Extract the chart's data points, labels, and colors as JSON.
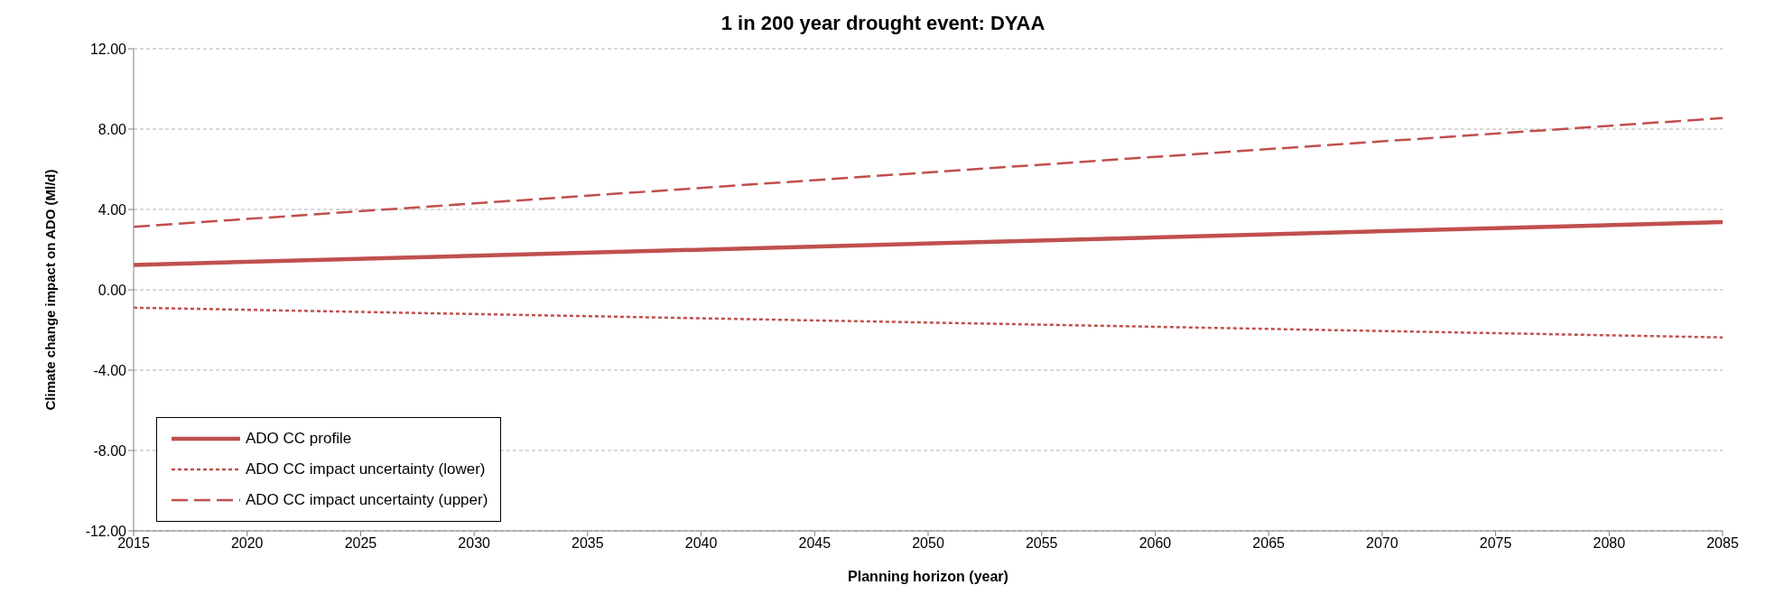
{
  "chart_data": {
    "type": "line",
    "title": "1 in 200 year drought event: DYAA",
    "xlabel": "Planning horizon (year)",
    "ylabel": "Climate change impact on ADO (Ml/d)",
    "x": [
      2015,
      2085
    ],
    "series": [
      {
        "name": "ADO CC profile",
        "color": "#c0504d",
        "values": [
          1.24,
          3.37
        ],
        "line_style": "solid"
      },
      {
        "name": "ADO CC impact uncertainty (lower)",
        "color": "#c0504d",
        "values": [
          -0.89,
          -2.37
        ],
        "line_style": "dotted"
      },
      {
        "name": "ADO CC impact uncertainty (upper)",
        "color": "#c0504d",
        "values": [
          3.14,
          8.55
        ],
        "line_style": "dashed"
      }
    ],
    "xlim": [
      2015,
      2085
    ],
    "xticks": [
      2015,
      2020,
      2025,
      2030,
      2035,
      2040,
      2045,
      2050,
      2055,
      2060,
      2065,
      2070,
      2075,
      2080,
      2085
    ],
    "ylim": [
      -12,
      12
    ],
    "yticks": [
      {
        "value": -12,
        "label": "-12.00"
      },
      {
        "value": -8,
        "label": "-8.00"
      },
      {
        "value": -4,
        "label": "-4.00"
      },
      {
        "value": 0,
        "label": "0.00"
      },
      {
        "value": 4,
        "label": "4.00"
      },
      {
        "value": 8,
        "label": "8.00"
      },
      {
        "value": 12,
        "label": "12.00"
      }
    ],
    "grid": "y",
    "legend": "bottom left",
    "marker": "none"
  }
}
